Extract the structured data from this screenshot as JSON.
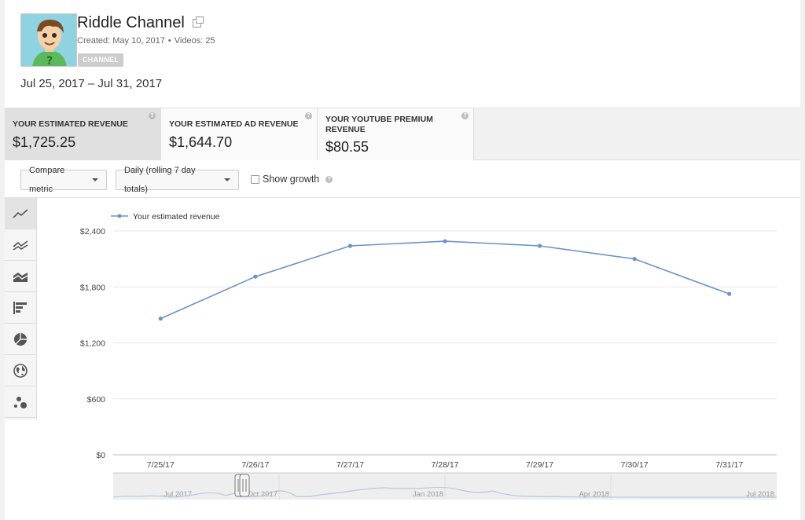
{
  "channel": {
    "name": "Riddle Channel",
    "created": "Created: May 10, 2017",
    "videos": "Videos: 25",
    "badge": "CHANNEL"
  },
  "date_range": "Jul 25, 2017 – Jul 31, 2017",
  "metrics": [
    {
      "label": "YOUR ESTIMATED REVENUE",
      "value": "$1,725.25"
    },
    {
      "label": "YOUR ESTIMATED AD REVENUE",
      "value": "$1,644.70"
    },
    {
      "label": "YOUR YOUTUBE PREMIUM REVENUE",
      "value": "$80.55"
    }
  ],
  "controls": {
    "compare_metric": "Compare metric",
    "granularity": "Daily (rolling 7 day totals)",
    "show_growth": "Show growth"
  },
  "toolbar_icons": [
    "line-chart-icon",
    "multi-line-chart-icon",
    "stacked-area-chart-icon",
    "bar-chart-icon",
    "pie-chart-icon",
    "globe-map-icon",
    "bubble-chart-icon"
  ],
  "chart_data": {
    "type": "line",
    "series": [
      {
        "name": "Your estimated revenue",
        "values": [
          1460,
          1910,
          2240,
          2290,
          2240,
          2100,
          1725
        ],
        "color": "#6a93c7"
      }
    ],
    "categories": [
      "7/25/17",
      "7/26/17",
      "7/27/17",
      "7/28/17",
      "7/29/17",
      "7/30/17",
      "7/31/17"
    ],
    "y_ticks": [
      "$0",
      "$600",
      "$1,200",
      "$1,800",
      "$2,400"
    ],
    "y_tick_values": [
      0,
      600,
      1200,
      1800,
      2400
    ],
    "ylim": [
      0,
      2400
    ],
    "grid": true,
    "legend": "top-left"
  },
  "overview": {
    "labels": [
      "Jul 2017",
      "Oct 2017",
      "Jan 2018",
      "Apr 2018",
      "Jul 2018"
    ]
  }
}
